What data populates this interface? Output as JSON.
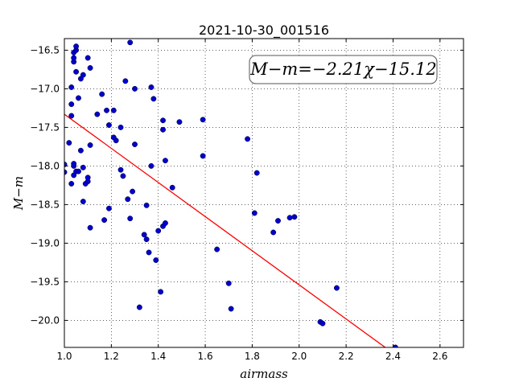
{
  "chart_data": {
    "type": "scatter",
    "title": "2021-10-30_001516",
    "xlabel": "airmass",
    "ylabel": "M−m",
    "annotation": "M−m=−2.21χ−15.12",
    "xlim": [
      1.0,
      2.7
    ],
    "ylim": [
      -16.35,
      -20.35
    ],
    "y_inverted": true,
    "grid": true,
    "x_ticks": [
      1.0,
      1.2,
      1.4,
      1.6,
      1.8,
      2.0,
      2.2,
      2.4,
      2.6
    ],
    "x_tick_labels": [
      "1.0",
      "1.2",
      "1.4",
      "1.6",
      "1.8",
      "2.0",
      "2.2",
      "2.4",
      "2.6"
    ],
    "y_ticks": [
      -16.5,
      -17.0,
      -17.5,
      -18.0,
      -18.5,
      -19.0,
      -19.5,
      -20.0
    ],
    "y_tick_labels": [
      "−16.5",
      "−17.0",
      "−17.5",
      "−18.0",
      "−18.5",
      "−19.0",
      "−19.5",
      "−20.0"
    ],
    "fit_line": {
      "slope": -2.21,
      "intercept": -15.12,
      "x_range": [
        1.0,
        2.7
      ],
      "color": "#ff0000"
    },
    "marker_color": "#0000cc",
    "points": [
      [
        1.0,
        -17.98
      ],
      [
        1.0,
        -18.08
      ],
      [
        1.02,
        -17.7
      ],
      [
        1.03,
        -17.2
      ],
      [
        1.03,
        -17.35
      ],
      [
        1.03,
        -16.98
      ],
      [
        1.03,
        -18.23
      ],
      [
        1.04,
        -16.65
      ],
      [
        1.04,
        -16.6
      ],
      [
        1.04,
        -16.53
      ],
      [
        1.05,
        -16.5
      ],
      [
        1.05,
        -16.45
      ],
      [
        1.05,
        -16.78
      ],
      [
        1.04,
        -17.97
      ],
      [
        1.04,
        -18.0
      ],
      [
        1.04,
        -18.12
      ],
      [
        1.05,
        -18.07
      ],
      [
        1.06,
        -17.12
      ],
      [
        1.06,
        -18.07
      ],
      [
        1.07,
        -17.8
      ],
      [
        1.07,
        -16.87
      ],
      [
        1.08,
        -16.82
      ],
      [
        1.08,
        -18.46
      ],
      [
        1.08,
        -18.02
      ],
      [
        1.09,
        -18.23
      ],
      [
        1.1,
        -18.2
      ],
      [
        1.1,
        -18.15
      ],
      [
        1.1,
        -16.6
      ],
      [
        1.11,
        -16.73
      ],
      [
        1.11,
        -17.73
      ],
      [
        1.11,
        -18.8
      ],
      [
        1.14,
        -17.33
      ],
      [
        1.16,
        -17.07
      ],
      [
        1.17,
        -18.7
      ],
      [
        1.18,
        -17.28
      ],
      [
        1.19,
        -17.47
      ],
      [
        1.19,
        -18.55
      ],
      [
        1.21,
        -17.28
      ],
      [
        1.21,
        -17.63
      ],
      [
        1.22,
        -17.67
      ],
      [
        1.24,
        -17.5
      ],
      [
        1.24,
        -18.05
      ],
      [
        1.25,
        -18.13
      ],
      [
        1.26,
        -16.9
      ],
      [
        1.27,
        -18.43
      ],
      [
        1.28,
        -16.4
      ],
      [
        1.28,
        -18.68
      ],
      [
        1.29,
        -18.33
      ],
      [
        1.3,
        -17.0
      ],
      [
        1.3,
        -17.72
      ],
      [
        1.32,
        -19.83
      ],
      [
        1.34,
        -18.89
      ],
      [
        1.35,
        -18.51
      ],
      [
        1.35,
        -18.95
      ],
      [
        1.36,
        -19.12
      ],
      [
        1.37,
        -16.98
      ],
      [
        1.37,
        -18.0
      ],
      [
        1.38,
        -17.13
      ],
      [
        1.39,
        -19.22
      ],
      [
        1.4,
        -18.84
      ],
      [
        1.41,
        -19.63
      ],
      [
        1.42,
        -17.41
      ],
      [
        1.42,
        -17.53
      ],
      [
        1.42,
        -18.78
      ],
      [
        1.43,
        -18.74
      ],
      [
        1.43,
        -17.93
      ],
      [
        1.46,
        -18.28
      ],
      [
        1.49,
        -17.43
      ],
      [
        1.59,
        -17.4
      ],
      [
        1.59,
        -17.87
      ],
      [
        1.65,
        -19.08
      ],
      [
        1.7,
        -19.52
      ],
      [
        1.71,
        -19.85
      ],
      [
        1.78,
        -17.65
      ],
      [
        1.81,
        -18.61
      ],
      [
        1.82,
        -18.09
      ],
      [
        1.89,
        -18.86
      ],
      [
        1.91,
        -18.71
      ],
      [
        1.96,
        -18.67
      ],
      [
        1.98,
        -18.66
      ],
      [
        2.09,
        -20.02
      ],
      [
        2.1,
        -20.04
      ],
      [
        2.16,
        -19.58
      ],
      [
        2.41,
        -20.35
      ]
    ]
  }
}
